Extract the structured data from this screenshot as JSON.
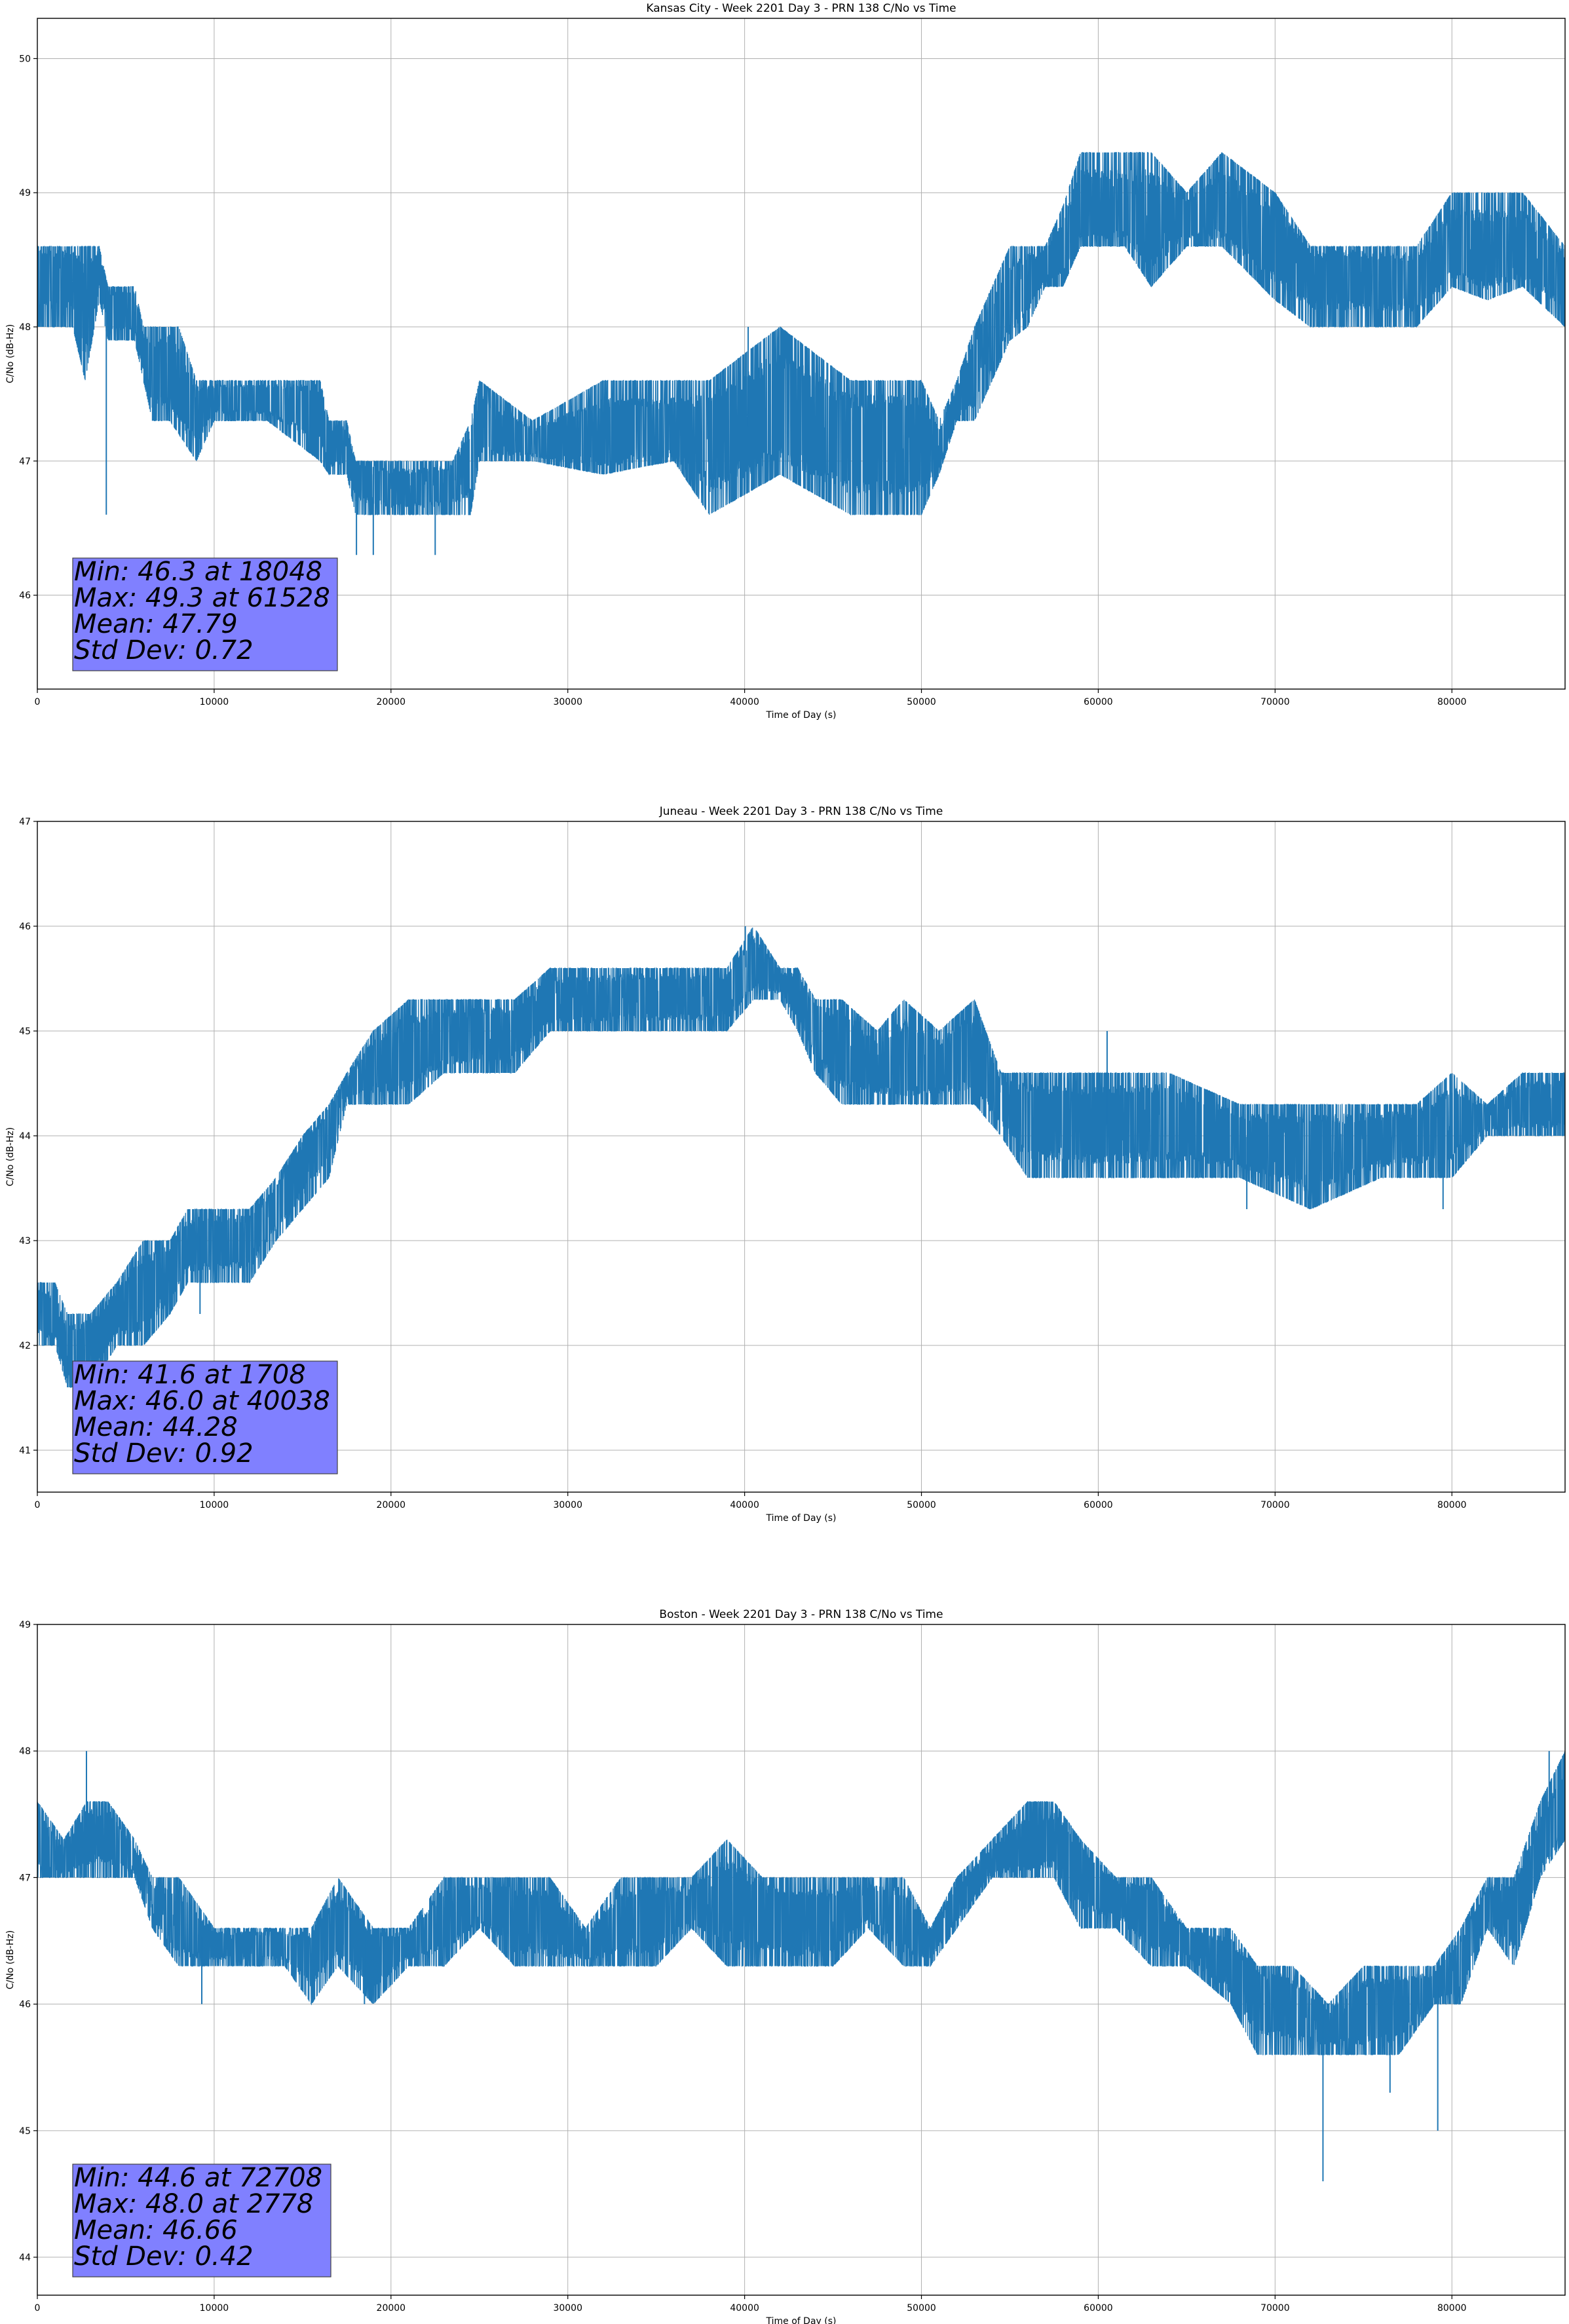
{
  "chart_data": [
    {
      "type": "line",
      "title": "Kansas City - Week 2201 Day 3 - PRN 138 C/No vs Time",
      "xlabel": "Time of Day (s)",
      "ylabel": "C/No (dB-Hz)",
      "xlim": [
        0,
        86400
      ],
      "ylim": [
        45.3,
        50.3
      ],
      "xticks": [
        0,
        10000,
        20000,
        30000,
        40000,
        50000,
        60000,
        70000,
        80000
      ],
      "yticks": [
        46,
        47,
        48,
        49,
        50
      ],
      "grid": true,
      "line_color": "#1f77b4",
      "stats_box_color": "#8080ff",
      "stats": [
        "Min: 46.3 at 18048",
        "Max: 49.3 at 61528",
        "Mean: 47.79",
        "Std Dev: 0.72"
      ],
      "series": [
        {
          "x": [
            0,
            2000,
            2700,
            3500,
            4000,
            5500,
            6000,
            6500,
            7500,
            8000,
            9000,
            10000,
            13000,
            16000,
            16500,
            17500,
            18000,
            20000,
            22000,
            23500,
            24500,
            25000,
            28000,
            32000,
            36000,
            38000,
            42000,
            46000,
            50000,
            51000,
            52000,
            53000,
            54000,
            55000,
            56000,
            57000,
            58000,
            59000,
            60000,
            61500,
            63000,
            65000,
            67000,
            70000,
            72000,
            75000,
            78000,
            80000,
            82000,
            84000,
            86400
          ],
          "y": [
            48.5,
            48.5,
            48.2,
            48.5,
            48.2,
            48.2,
            47.8,
            47.6,
            47.8,
            47.4,
            47.5,
            47.5,
            47.5,
            47.5,
            47.1,
            47.2,
            47.0,
            46.8,
            46.8,
            46.9,
            47.1,
            47.2,
            47.1,
            47.1,
            47.1,
            47.2,
            47.3,
            47.2,
            47.2,
            47.1,
            47.4,
            47.7,
            47.9,
            48.1,
            48.4,
            48.5,
            48.6,
            48.8,
            48.8,
            48.8,
            48.8,
            48.8,
            48.8,
            48.7,
            48.5,
            48.5,
            48.4,
            48.5,
            48.5,
            48.5,
            48.5
          ],
          "low": [
            48.0,
            48.0,
            47.6,
            48.2,
            47.9,
            47.9,
            47.6,
            47.3,
            47.3,
            47.2,
            47.0,
            47.3,
            47.3,
            47.0,
            46.9,
            46.9,
            46.6,
            46.6,
            46.6,
            46.6,
            46.6,
            47.0,
            47.0,
            46.9,
            47.0,
            46.6,
            46.9,
            46.6,
            46.6,
            46.9,
            47.3,
            47.3,
            47.6,
            47.9,
            48.0,
            48.3,
            48.3,
            48.6,
            48.6,
            48.6,
            48.3,
            48.6,
            48.6,
            48.2,
            48.0,
            48.0,
            48.0,
            48.3,
            48.2,
            48.3,
            48.0
          ],
          "high": [
            48.6,
            48.6,
            48.6,
            48.6,
            48.3,
            48.3,
            48.0,
            48.0,
            48.0,
            48.0,
            47.6,
            47.6,
            47.6,
            47.6,
            47.3,
            47.3,
            47.0,
            47.0,
            47.0,
            47.0,
            47.3,
            47.6,
            47.3,
            47.6,
            47.6,
            47.6,
            48.0,
            47.6,
            47.6,
            47.3,
            47.6,
            48.0,
            48.3,
            48.6,
            48.6,
            48.6,
            48.9,
            49.3,
            49.3,
            49.3,
            49.3,
            49.0,
            49.3,
            49.0,
            48.6,
            48.6,
            48.6,
            49.0,
            49.0,
            49.0,
            48.6
          ],
          "spikes": [
            {
              "x": 3900,
              "y": 46.6
            },
            {
              "x": 18048,
              "y": 46.3
            },
            {
              "x": 19000,
              "y": 46.3
            },
            {
              "x": 22500,
              "y": 46.3
            },
            {
              "x": 40200,
              "y": 48.0
            },
            {
              "x": 61528,
              "y": 49.3
            }
          ]
        }
      ]
    },
    {
      "type": "line",
      "title": "Juneau - Week 2201 Day 3 - PRN 138 C/No vs Time",
      "xlabel": "Time of Day (s)",
      "ylabel": "C/No (dB-Hz)",
      "xlim": [
        0,
        86400
      ],
      "ylim": [
        40.6,
        47.0
      ],
      "xticks": [
        0,
        10000,
        20000,
        30000,
        40000,
        50000,
        60000,
        70000,
        80000
      ],
      "yticks": [
        41,
        42,
        43,
        44,
        45,
        46,
        47
      ],
      "grid": true,
      "line_color": "#1f77b4",
      "stats_box_color": "#8080ff",
      "stats": [
        "Min: 41.6 at 1708",
        "Max: 46.0 at 40038",
        "Mean: 44.28",
        "Std Dev: 0.92"
      ],
      "series": [
        {
          "x": [
            0,
            1000,
            1700,
            3000,
            4500,
            6000,
            7500,
            8500,
            10000,
            12000,
            13500,
            15000,
            16500,
            17500,
            19000,
            21000,
            23000,
            25000,
            27000,
            29000,
            31000,
            34000,
            37000,
            39000,
            40500,
            42000,
            43000,
            44000,
            45500,
            47500,
            49000,
            51000,
            53000,
            54500,
            56000,
            60000,
            64000,
            68000,
            72000,
            76000,
            78000,
            80000,
            82000,
            84000,
            86400
          ],
          "y": [
            42.4,
            42.2,
            41.9,
            42.1,
            42.4,
            42.5,
            42.8,
            43.0,
            43.1,
            43.1,
            43.4,
            43.8,
            44.2,
            44.5,
            44.7,
            44.8,
            44.9,
            45.0,
            45.1,
            45.3,
            45.3,
            45.4,
            45.4,
            45.4,
            45.7,
            45.5,
            45.4,
            45.1,
            44.9,
            44.7,
            44.6,
            44.7,
            44.8,
            44.4,
            44.2,
            44.1,
            44.2,
            44.0,
            43.9,
            44.0,
            44.1,
            44.2,
            44.2,
            44.3,
            44.3
          ],
          "low": [
            42.0,
            42.0,
            41.6,
            41.6,
            42.0,
            42.0,
            42.3,
            42.6,
            42.6,
            42.6,
            43.0,
            43.3,
            43.6,
            44.3,
            44.3,
            44.3,
            44.6,
            44.6,
            44.6,
            45.0,
            45.0,
            45.0,
            45.0,
            45.0,
            45.3,
            45.3,
            45.0,
            44.6,
            44.3,
            44.3,
            44.3,
            44.3,
            44.3,
            44.0,
            43.6,
            43.6,
            43.6,
            43.6,
            43.3,
            43.6,
            43.6,
            43.6,
            44.0,
            44.0,
            44.0
          ],
          "high": [
            42.6,
            42.6,
            42.3,
            42.3,
            42.6,
            43.0,
            43.0,
            43.3,
            43.3,
            43.3,
            43.6,
            44.0,
            44.3,
            44.6,
            45.0,
            45.3,
            45.3,
            45.3,
            45.3,
            45.6,
            45.6,
            45.6,
            45.6,
            45.6,
            46.0,
            45.6,
            45.6,
            45.3,
            45.3,
            45.0,
            45.3,
            45.0,
            45.3,
            44.6,
            44.6,
            44.6,
            44.6,
            44.3,
            44.3,
            44.3,
            44.3,
            44.6,
            44.3,
            44.6,
            44.6
          ],
          "spikes": [
            {
              "x": 1708,
              "y": 41.6
            },
            {
              "x": 9200,
              "y": 42.3
            },
            {
              "x": 40038,
              "y": 46.0
            },
            {
              "x": 60500,
              "y": 45.0
            },
            {
              "x": 68400,
              "y": 43.3
            },
            {
              "x": 79500,
              "y": 43.3
            }
          ]
        }
      ]
    },
    {
      "type": "line",
      "title": "Boston - Week 2201 Day 3 - PRN 138 C/No vs Time",
      "xlabel": "Time of Day (s)",
      "ylabel": "C/No (dB-Hz)",
      "xlim": [
        0,
        86400
      ],
      "ylim": [
        43.7,
        49.0
      ],
      "xticks": [
        0,
        10000,
        20000,
        30000,
        40000,
        50000,
        60000,
        70000,
        80000
      ],
      "yticks": [
        44,
        45,
        46,
        47,
        48,
        49
      ],
      "grid": true,
      "line_color": "#1f77b4",
      "stats_box_color": "#8080ff",
      "stats": [
        "Min: 44.6 at 72708",
        "Max: 48.0 at 2778",
        "Mean: 46.66",
        "Std Dev: 0.42"
      ],
      "series": [
        {
          "x": [
            0,
            1500,
            2800,
            4000,
            5500,
            6500,
            8000,
            10000,
            12000,
            14000,
            15500,
            17000,
            19000,
            21000,
            23000,
            25000,
            27000,
            29000,
            31000,
            33000,
            35000,
            37000,
            39000,
            41000,
            43000,
            45000,
            47000,
            49000,
            50500,
            52000,
            54000,
            56000,
            57500,
            59000,
            61000,
            63000,
            65000,
            67500,
            69000,
            71000,
            73000,
            75000,
            77000,
            79000,
            80500,
            82000,
            83500,
            85000,
            86400
          ],
          "y": [
            47.3,
            47.1,
            47.4,
            47.4,
            47.1,
            46.8,
            46.6,
            46.5,
            46.5,
            46.5,
            46.5,
            46.6,
            46.5,
            46.5,
            46.7,
            46.8,
            46.7,
            46.6,
            46.5,
            46.6,
            46.7,
            46.8,
            46.8,
            46.8,
            46.6,
            46.7,
            46.8,
            46.7,
            46.5,
            46.8,
            47.1,
            47.2,
            47.3,
            47.2,
            46.9,
            46.8,
            46.6,
            46.3,
            46.2,
            46.0,
            45.9,
            45.9,
            46.0,
            46.1,
            46.4,
            46.8,
            46.8,
            47.1,
            47.5
          ],
          "low": [
            47.0,
            47.0,
            47.0,
            47.0,
            47.0,
            46.6,
            46.3,
            46.3,
            46.3,
            46.3,
            46.0,
            46.3,
            46.0,
            46.3,
            46.3,
            46.6,
            46.3,
            46.3,
            46.3,
            46.3,
            46.3,
            46.6,
            46.3,
            46.3,
            46.3,
            46.3,
            46.6,
            46.3,
            46.3,
            46.6,
            47.0,
            47.0,
            47.0,
            46.6,
            46.6,
            46.3,
            46.3,
            46.0,
            45.6,
            45.6,
            45.6,
            45.6,
            45.6,
            46.0,
            46.0,
            46.6,
            46.3,
            47.0,
            47.3
          ],
          "high": [
            47.6,
            47.3,
            47.6,
            47.6,
            47.3,
            47.0,
            47.0,
            46.6,
            46.6,
            46.6,
            46.6,
            47.0,
            46.6,
            46.6,
            47.0,
            47.0,
            47.0,
            47.0,
            46.6,
            47.0,
            47.0,
            47.0,
            47.3,
            47.0,
            47.0,
            47.0,
            47.0,
            47.0,
            46.6,
            47.0,
            47.3,
            47.6,
            47.6,
            47.3,
            47.0,
            47.0,
            46.6,
            46.6,
            46.3,
            46.3,
            46.0,
            46.3,
            46.3,
            46.3,
            46.6,
            47.0,
            47.0,
            47.6,
            48.0
          ],
          "spikes": [
            {
              "x": 2778,
              "y": 48.0
            },
            {
              "x": 9300,
              "y": 46.0
            },
            {
              "x": 18500,
              "y": 46.0
            },
            {
              "x": 72708,
              "y": 44.6
            },
            {
              "x": 76500,
              "y": 45.3
            },
            {
              "x": 79200,
              "y": 45.0
            },
            {
              "x": 85500,
              "y": 48.0
            }
          ]
        }
      ]
    }
  ]
}
